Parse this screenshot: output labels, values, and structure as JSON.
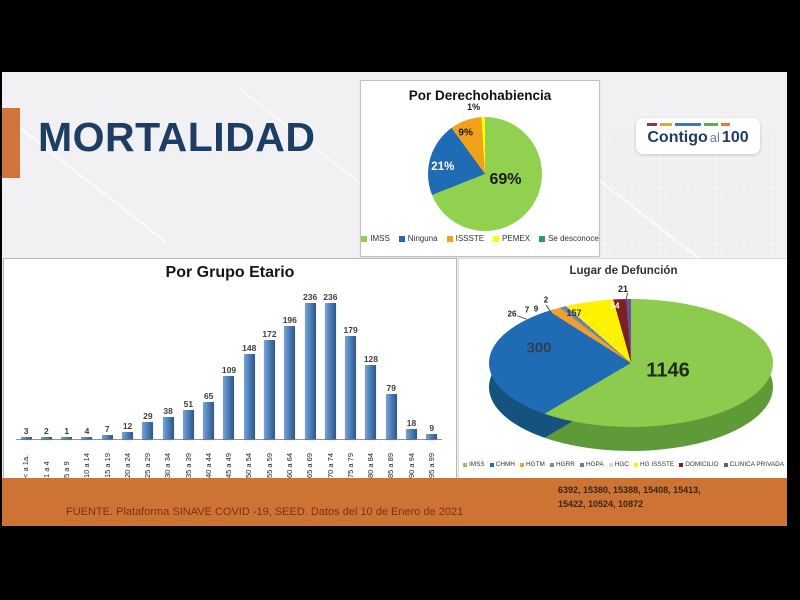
{
  "page": {
    "title": "MORTALIDAD",
    "logo": {
      "word1": "Contigo",
      "word2": "al",
      "word3": "100",
      "dash_colors": [
        "#8b3a3a",
        "#e8a33d",
        "#3a7abf",
        "#6aa84f",
        "#e07b39"
      ],
      "dash_widths": [
        10,
        12,
        26,
        14,
        9
      ]
    },
    "footer": {
      "source": "FUENTE. Plataforma SINAVE COVID -19, SEED. Datos del 10 de Enero de 2021",
      "codes_line1": "6392, 15380, 15388, 15408, 15413,",
      "codes_line2": "15422, 10524, 10872"
    },
    "colors": {
      "accent_orange": "#cd7435",
      "title_navy": "#1d3d63"
    }
  },
  "chart_data": [
    {
      "type": "pie",
      "title": "Por Derechohabiencia",
      "labels": [
        "IMSS",
        "Ninguna",
        "ISSSTE",
        "PEMEX",
        "Se desconoce"
      ],
      "values": [
        69,
        21,
        9,
        1,
        0
      ],
      "slice_labels": [
        "69%",
        "21%",
        "9%",
        "1%"
      ],
      "colors": [
        "#92d050",
        "#1f6cb4",
        "#f2a21a",
        "#ffff00",
        "#2ca04c"
      ],
      "legend_position": "bottom"
    },
    {
      "type": "bar",
      "title": "Por Grupo Etario",
      "categories": [
        "< a 1a.",
        "1 a 4",
        "5 a 9",
        "10 a 14",
        "15 a 19",
        "20 a 24",
        "25 a 29",
        "30 a 34",
        "35 a 39",
        "40 a 44",
        "45 a 49",
        "50 a 54",
        "55 a 59",
        "60 a 64",
        "65 a 69",
        "70 a 74",
        "75 a 79",
        "80 a 84",
        "85 a 89",
        "90 a 94",
        "95 a 99"
      ],
      "values": [
        3,
        2,
        1,
        4,
        7,
        12,
        29,
        38,
        51,
        65,
        109,
        148,
        172,
        196,
        236,
        236,
        179,
        128,
        79,
        18,
        9
      ],
      "bar_color": "#4f81bd",
      "xlabel": "",
      "ylabel": "",
      "ylim": [
        0,
        250
      ],
      "grid": false,
      "value_labels": true
    },
    {
      "type": "pie",
      "style": "3d",
      "title": "Lugar de Defunción",
      "labels": [
        "IMSS",
        "CHMH",
        "HGTM",
        "HGRR",
        "HGPA",
        "HGC",
        "HG ISSSTE",
        "DOMICILIO",
        "CLINICA PRIVADA"
      ],
      "values": [
        1146,
        300,
        26,
        7,
        9,
        2,
        157,
        54,
        21
      ],
      "colors": [
        "#8ccb4e",
        "#1f6cb4",
        "#f0a030",
        "#8a8a8a",
        "#5b84a7",
        "#d8d8d8",
        "#fff200",
        "#7b2025",
        "#6a5295"
      ],
      "side_green": "#5f9a38",
      "side_blue": "#15537e",
      "legend_position": "bottom"
    }
  ]
}
